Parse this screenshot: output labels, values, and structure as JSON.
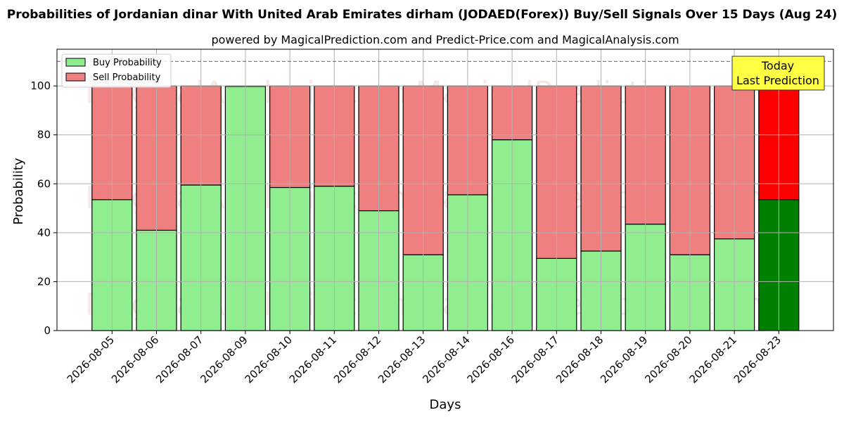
{
  "chart_data": {
    "type": "bar",
    "stacked": true,
    "title": "Probabilities of Jordanian dinar With United Arab Emirates dirham (JODAED(Forex)) Buy/Sell Signals Over 15 Days (Aug 24)",
    "subtitle": "powered by MagicalPrediction.com and Predict-Price.com and MagicalAnalysis.com",
    "xlabel": "Days",
    "ylabel": "Probability",
    "ylim": [
      0,
      115
    ],
    "yticks": [
      0,
      20,
      40,
      60,
      80,
      100
    ],
    "reference_line": 110,
    "grid": true,
    "legend_position": "top-left",
    "categories": [
      "2026-08-05",
      "2026-08-06",
      "2026-08-07",
      "2026-08-09",
      "2026-08-10",
      "2026-08-11",
      "2026-08-12",
      "2026-08-13",
      "2026-08-14",
      "2026-08-16",
      "2026-08-17",
      "2026-08-18",
      "2026-08-19",
      "2026-08-20",
      "2026-08-21",
      "2026-08-23"
    ],
    "series": [
      {
        "name": "Buy Probability",
        "color": "#90ee90",
        "values": [
          53.5,
          41,
          59.5,
          99.8,
          58.5,
          59,
          49,
          31,
          55.5,
          78,
          29.5,
          32.5,
          43.5,
          31,
          37.5,
          53.5
        ]
      },
      {
        "name": "Sell Probability",
        "color": "#f08080",
        "values": [
          46.5,
          59,
          40.5,
          0.2,
          41.5,
          41,
          51,
          69,
          44.5,
          22,
          70.5,
          67.5,
          56.5,
          69,
          62.5,
          46.5
        ]
      }
    ],
    "highlight": {
      "index": 15,
      "buy_color": "#008000",
      "sell_color": "#ff0000"
    },
    "annotation": {
      "line1": "Today",
      "line2": "Last Prediction",
      "background": "#ffff44"
    },
    "watermarks": [
      "MagicalAnalysis.com",
      "MagicalPrediction.com"
    ]
  }
}
